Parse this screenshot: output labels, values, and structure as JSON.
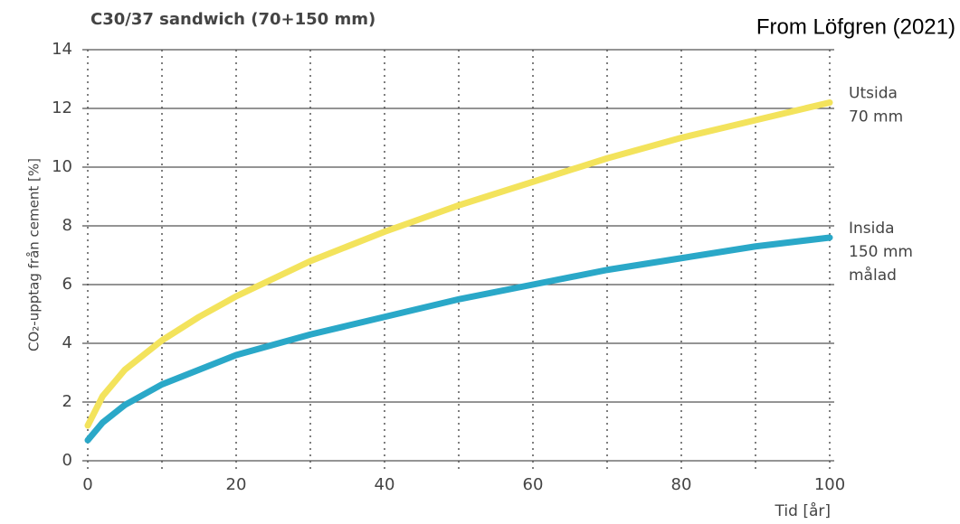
{
  "chart_data": {
    "type": "line",
    "title": "C30/37 sandwich (70+150 mm)",
    "annotation": "From Löfgren (2021)",
    "y_label": "CO₂-upptag från cement [%]",
    "x_label": "Tid [år]",
    "x": [
      0,
      2,
      5,
      10,
      15,
      20,
      30,
      40,
      50,
      60,
      70,
      80,
      90,
      100
    ],
    "series": [
      {
        "name": "Utsida\n70 mm",
        "color": "#f3e35c",
        "values": [
          1.2,
          2.2,
          3.1,
          4.1,
          4.9,
          5.6,
          6.8,
          7.8,
          8.7,
          9.5,
          10.3,
          11.0,
          11.6,
          12.2
        ]
      },
      {
        "name": "Insida\n150 mm\nmålad",
        "color": "#2aa8c8",
        "values": [
          0.7,
          1.3,
          1.9,
          2.6,
          3.1,
          3.6,
          4.3,
          4.9,
          5.5,
          6.0,
          6.5,
          6.9,
          7.3,
          7.6
        ]
      }
    ],
    "xlim": [
      0,
      100
    ],
    "ylim": [
      0,
      14
    ],
    "xticks": [
      0,
      20,
      40,
      60,
      80,
      100
    ],
    "x_gridlines": [
      0,
      10,
      20,
      30,
      40,
      50,
      60,
      70,
      80,
      90,
      100
    ],
    "yticks": [
      0,
      2,
      4,
      6,
      8,
      10,
      12,
      14
    ],
    "grid": true
  }
}
